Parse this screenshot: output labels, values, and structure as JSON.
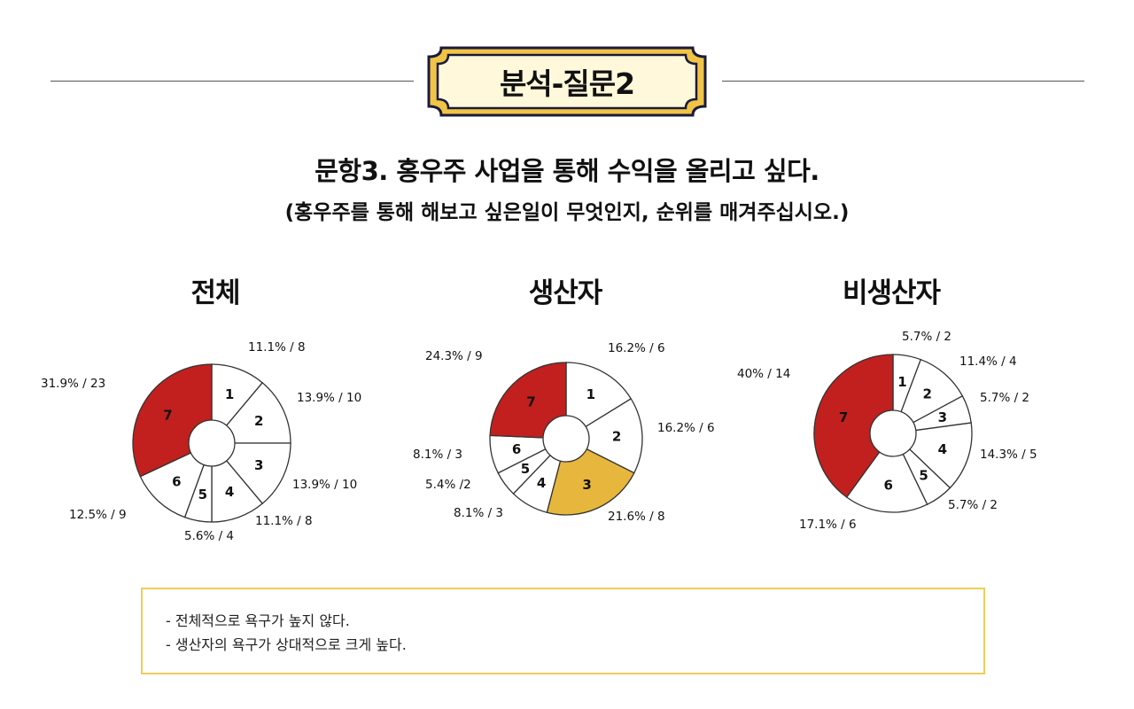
{
  "header": {
    "badge_label": "분석-질문2"
  },
  "question": {
    "title": "문항3. 홍우주 사업을 통해 수익을 올리고 싶다.",
    "note": "(홍우주를 통해 해보고 싶은일이 무엇인지, 순위를 매겨주십시오.)"
  },
  "colors": {
    "highlight_red": "#c1201e",
    "highlight_gold": "#e6b73c",
    "default_fill": "#ffffff",
    "stroke": "#333333",
    "badge_fill": "#fff8db",
    "badge_border": "#f0c446",
    "summary_border": "#f0cc5c"
  },
  "chart_data": [
    {
      "type": "pie",
      "title": "전체",
      "categories": [
        "1",
        "2",
        "3",
        "4",
        "5",
        "6",
        "7"
      ],
      "values": [
        8,
        10,
        10,
        8,
        4,
        9,
        23
      ],
      "percent_labels": [
        "11.1%",
        "13.9%",
        "13.9%",
        "11.1%",
        "5.6%",
        "12.5%",
        "31.9%"
      ],
      "data_labels": [
        "11.1% / 8",
        "13.9% / 10",
        "13.9% / 10",
        "11.1% / 8",
        "5.6% / 4",
        "12.5% / 9",
        "31.9% / 23"
      ],
      "highlight": {
        "7": "#c1201e"
      }
    },
    {
      "type": "pie",
      "title": "생산자",
      "categories": [
        "1",
        "2",
        "3",
        "4",
        "5",
        "6",
        "7"
      ],
      "values": [
        6,
        6,
        8,
        3,
        2,
        3,
        9
      ],
      "percent_labels": [
        "16.2%",
        "16.2%",
        "21.6%",
        "8.1%",
        "5.4%",
        "8.1%",
        "24.3%"
      ],
      "data_labels": [
        "16.2% / 6",
        "16.2% / 6",
        "21.6% / 8",
        "8.1% / 3",
        "5.4% /2",
        "8.1% / 3",
        "24.3% / 9"
      ],
      "highlight": {
        "3": "#e6b73c",
        "7": "#c1201e"
      }
    },
    {
      "type": "pie",
      "title": "비생산자",
      "categories": [
        "1",
        "2",
        "3",
        "4",
        "5",
        "6",
        "7"
      ],
      "values": [
        2,
        4,
        2,
        5,
        2,
        6,
        14
      ],
      "percent_labels": [
        "5.7%",
        "11.4%",
        "5.7%",
        "14.3%",
        "5.7%",
        "17.1%",
        "40%"
      ],
      "data_labels": [
        "5.7% / 2",
        "11.4% / 4",
        "5.7% / 2",
        "14.3% / 5",
        "5.7% / 2",
        "17.1% / 6",
        "40% / 14"
      ],
      "highlight": {
        "7": "#c1201e"
      }
    }
  ],
  "summary": {
    "lines": [
      "- 전체적으로 욕구가 높지 않다.",
      "- 생산자의 욕구가 상대적으로 크게 높다."
    ]
  }
}
